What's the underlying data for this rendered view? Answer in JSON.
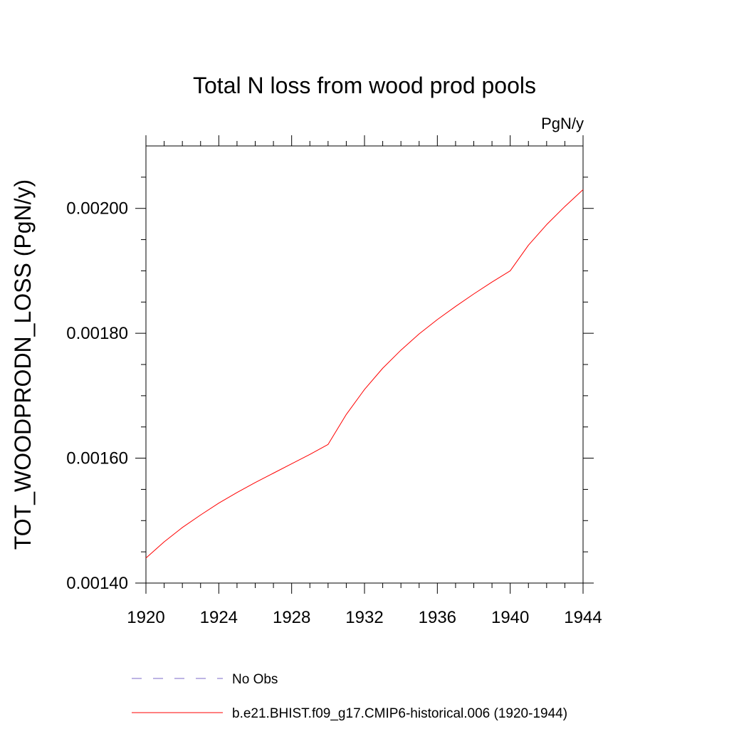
{
  "chart_data": {
    "type": "line",
    "title": "Total N loss from wood prod pools",
    "units": "PgN/y",
    "ylabel": "TOT_WOODPRODN_LOSS  (PgN/y)",
    "xlabel": "",
    "xlim": [
      1920,
      1944
    ],
    "ylim": [
      0.0014,
      0.0021
    ],
    "xticks": [
      1920,
      1924,
      1928,
      1932,
      1936,
      1940,
      1944
    ],
    "xtick_labels": [
      "1920",
      "1924",
      "1928",
      "1932",
      "1936",
      "1940",
      "1944"
    ],
    "yticks": [
      0.0014,
      0.0016,
      0.0018,
      0.002
    ],
    "ytick_labels": [
      "0.00140",
      "0.00160",
      "0.00180",
      "0.00200"
    ],
    "grid": false,
    "legend_position": "bottom",
    "series": [
      {
        "name": "b.e21.BHIST.f09_g17.CMIP6-historical.006 (1920-1944)",
        "color": "#ff0000",
        "style": "solid",
        "x": [
          1920,
          1921,
          1922,
          1923,
          1924,
          1925,
          1926,
          1927,
          1928,
          1929,
          1930,
          1931,
          1932,
          1933,
          1934,
          1935,
          1936,
          1937,
          1938,
          1939,
          1940,
          1941,
          1942,
          1943,
          1944
        ],
        "y": [
          0.00144,
          0.001466,
          0.001489,
          0.001509,
          0.001528,
          0.001545,
          0.001561,
          0.001576,
          0.001591,
          0.001606,
          0.001622,
          0.00167,
          0.00171,
          0.001744,
          0.001773,
          0.001799,
          0.001822,
          0.001843,
          0.001863,
          0.001882,
          0.0019,
          0.001941,
          0.001974,
          0.002003,
          0.00203
        ]
      }
    ],
    "legend": [
      {
        "label": "No Obs",
        "color": "#7b68c8",
        "style": "dashed"
      },
      {
        "label": "b.e21.BHIST.f09_g17.CMIP6-historical.006 (1920-1944)",
        "color": "#ff0000",
        "style": "solid"
      }
    ]
  }
}
